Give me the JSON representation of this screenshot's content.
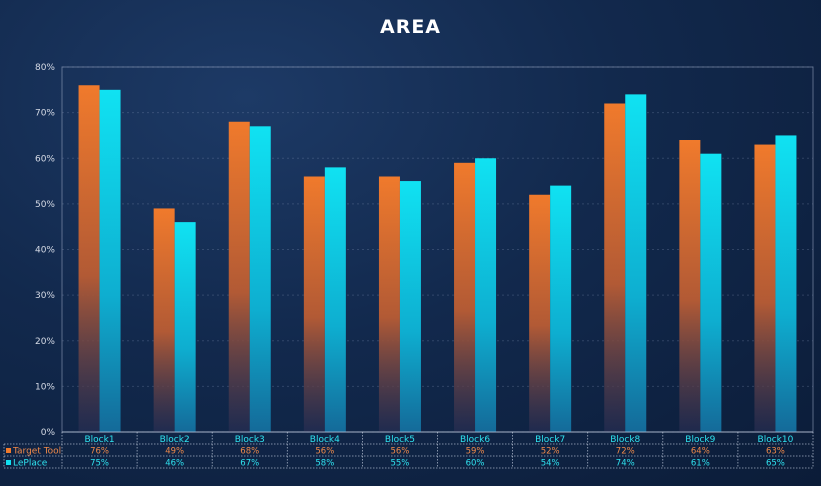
{
  "chart_data": {
    "type": "bar",
    "title": "AREA",
    "categories": [
      "Block1",
      "Block2",
      "Block3",
      "Block4",
      "Block5",
      "Block6",
      "Block7",
      "Block8",
      "Block9",
      "Block10"
    ],
    "series": [
      {
        "name": "Target Tool",
        "values": [
          76,
          49,
          68,
          56,
          56,
          59,
          52,
          72,
          64,
          63
        ],
        "labels": [
          "76%",
          "49%",
          "68%",
          "56%",
          "56%",
          "59%",
          "52%",
          "72%",
          "64%",
          "63%"
        ],
        "color": "#f07a2c"
      },
      {
        "name": "LePlace",
        "values": [
          75,
          46,
          67,
          58,
          55,
          60,
          54,
          74,
          61,
          65
        ],
        "labels": [
          "75%",
          "46%",
          "67%",
          "58%",
          "55%",
          "60%",
          "54%",
          "74%",
          "61%",
          "65%"
        ],
        "color": "#10dff0"
      }
    ],
    "ylim": [
      0,
      80
    ],
    "yticks": [
      0,
      10,
      20,
      30,
      40,
      50,
      60,
      70,
      80
    ],
    "ytick_labels": [
      "0%",
      "10%",
      "20%",
      "30%",
      "40%",
      "50%",
      "60%",
      "70%",
      "80%"
    ],
    "xlabel": "",
    "ylabel": "",
    "grid": true,
    "legend": "data-table"
  }
}
